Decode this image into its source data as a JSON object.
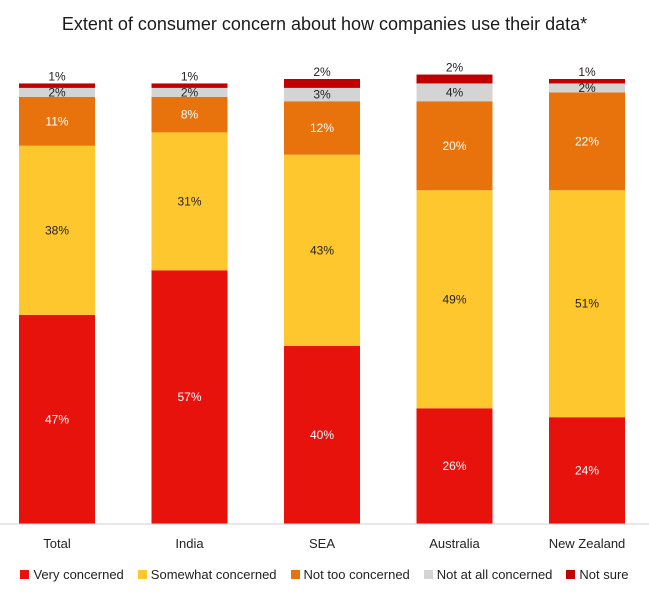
{
  "chart_data": {
    "type": "bar",
    "stacked": true,
    "title": "Extent of consumer concern about how companies use their data*",
    "categories": [
      "Total",
      "India",
      "SEA",
      "Australia",
      "New Zealand"
    ],
    "series": [
      {
        "name": "Very concerned",
        "color": "#e8120c",
        "label_color": "#ffffff",
        "values": [
          47,
          57,
          40,
          26,
          24
        ]
      },
      {
        "name": "Somewhat concerned",
        "color": "#ffc72e",
        "label_color": "#222222",
        "values": [
          38,
          31,
          43,
          49,
          51
        ]
      },
      {
        "name": "Not too concerned",
        "color": "#e8730c",
        "label_color": "#ffffff",
        "values": [
          11,
          8,
          12,
          20,
          22
        ]
      },
      {
        "name": "Not at all concerned",
        "color": "#d4d4d4",
        "label_color": "#222222",
        "values": [
          2,
          2,
          3,
          4,
          2
        ]
      },
      {
        "name": "Not sure",
        "color": "#c00000",
        "label_color": "#222222",
        "values": [
          1,
          1,
          2,
          2,
          1
        ]
      }
    ],
    "value_suffix": "%",
    "legend_position": "bottom",
    "grid": false
  }
}
